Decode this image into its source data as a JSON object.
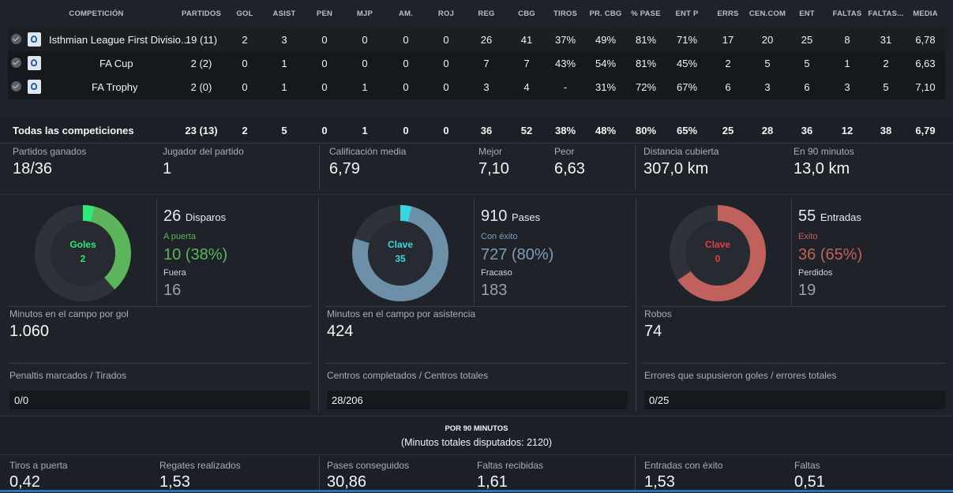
{
  "table": {
    "headers": [
      "COMPETICIÓN",
      "PARTIDOS",
      "GOL",
      "ASIST",
      "PEN",
      "MJP",
      "AM.",
      "ROJ",
      "REG",
      "CBG",
      "TIROS",
      "PR. CBG",
      "% PASE",
      "ENT P",
      "ERRS",
      "CEN.COM",
      "ENT",
      "FALTAS",
      "FALTAS...",
      "MEDIA"
    ],
    "rows": [
      {
        "name": "Isthmian League First Divisio...",
        "values": [
          "19 (11)",
          "2",
          "3",
          "0",
          "0",
          "0",
          "0",
          "26",
          "41",
          "37%",
          "49%",
          "81%",
          "71%",
          "17",
          "20",
          "25",
          "8",
          "31",
          "6,78"
        ]
      },
      {
        "name": "FA Cup",
        "values": [
          "2 (2)",
          "0",
          "1",
          "0",
          "0",
          "0",
          "0",
          "7",
          "7",
          "43%",
          "54%",
          "81%",
          "45%",
          "2",
          "5",
          "5",
          "1",
          "2",
          "6,63"
        ]
      },
      {
        "name": "FA Trophy",
        "values": [
          "2 (0)",
          "0",
          "1",
          "0",
          "1",
          "0",
          "0",
          "3",
          "4",
          "-",
          "31%",
          "72%",
          "67%",
          "6",
          "3",
          "6",
          "3",
          "5",
          "7,10"
        ]
      }
    ],
    "totals": {
      "label": "Todas las competiciones",
      "values": [
        "23 (13)",
        "2",
        "5",
        "0",
        "1",
        "0",
        "0",
        "36",
        "52",
        "38%",
        "48%",
        "80%",
        "65%",
        "25",
        "28",
        "36",
        "12",
        "38",
        "6,79"
      ]
    }
  },
  "summary": {
    "won_label": "Partidos ganados",
    "won_value": "18/36",
    "mom_label": "Jugador del partido",
    "mom_value": "1",
    "avg_label": "Calificación media",
    "avg_value": "6,79",
    "best_label": "Mejor",
    "best_value": "7,10",
    "worst_label": "Peor",
    "worst_value": "6,63",
    "dist_label": "Distancia cubierta",
    "dist_value": "307,0 km",
    "per90_label": "En 90 minutos",
    "per90_value": "13,0 km"
  },
  "goals_panel": {
    "donut_title": "Goles",
    "donut_value": "2",
    "color": "#5cb55a",
    "highlight": "#2ee87a",
    "shots_total": "26",
    "shots_label": "Disparos",
    "on_label": "A puerta",
    "on_value": "10 (38%)",
    "off_label": "Fuera",
    "off_value": "16",
    "mins_label": "Minutos en el campo por gol",
    "mins_value": "1.060",
    "pen_label": "Penaltis marcados / Tirados",
    "pen_value": "0/0"
  },
  "pass_panel": {
    "donut_title": "Clave",
    "donut_value": "35",
    "color": "#6e8fa8",
    "highlight": "#3ad6e0",
    "total": "910",
    "total_label": "Pases",
    "ok_label": "Con éxito",
    "ok_value": "727 (80%)",
    "fail_label": "Fracaso",
    "fail_value": "183",
    "mins_label": "Minutos en el campo por asistencia",
    "mins_value": "424",
    "cross_label": "Centros completados / Centros totales",
    "cross_value": "28/206"
  },
  "tackle_panel": {
    "donut_title": "Clave",
    "donut_value": "0",
    "color": "#c0615d",
    "highlight": "#e04040",
    "total": "55",
    "total_label": "Entradas",
    "ok_label": "Exito",
    "ok_value": "36 (65%)",
    "fail_label": "Perdidos",
    "fail_value": "19",
    "steal_label": "Robos",
    "steal_value": "74",
    "err_label": "Errores que supusieron goles / errores totales",
    "err_value": "0/25"
  },
  "per90": {
    "title": "POR 90 MINUTOS",
    "subtitle": "(Minutos totales disputados: 2120)",
    "items": [
      {
        "label": "Tiros a puerta",
        "value": "0,42"
      },
      {
        "label": "Regates realizados",
        "value": "1,53"
      },
      {
        "label": "Pases conseguidos",
        "value": "30,86"
      },
      {
        "label": "Faltas recibidas",
        "value": "1,61"
      },
      {
        "label": "Entradas con éxito",
        "value": "1,53"
      },
      {
        "label": "Faltas",
        "value": "0,51"
      }
    ]
  }
}
